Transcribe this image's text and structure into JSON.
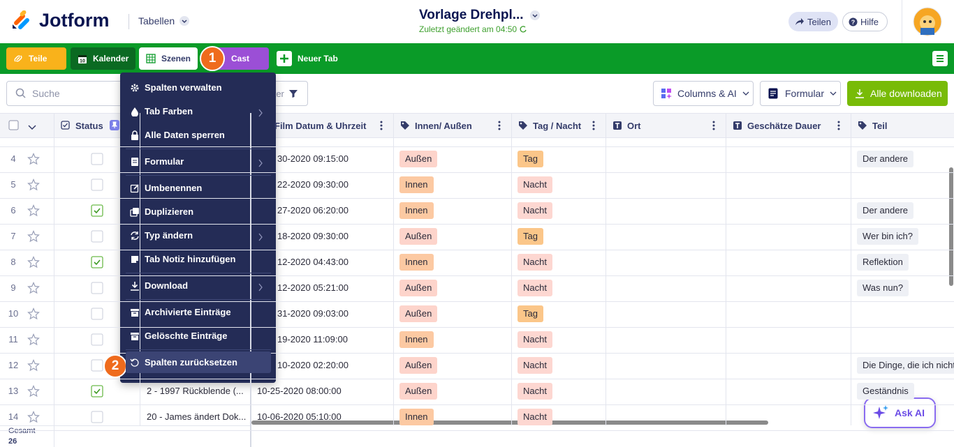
{
  "header": {
    "logo": "Jotform",
    "tables_menu": "Tabellen",
    "title": "Vorlage Drehpl...",
    "subtitle": "Zuletzt geändert am 04:50",
    "share": "Teilen",
    "help": "Hilfe"
  },
  "tabs": {
    "items": [
      "Teile",
      "Kalender",
      "Szenen",
      "Cast"
    ],
    "colors": [
      "#f9b21b",
      "#0b6a22",
      "#ffffff",
      "#9b4fd6"
    ],
    "active": 2,
    "badge": "1",
    "new_tab": "Neuer Tab"
  },
  "toolbar": {
    "search": "Suche",
    "filter": "Filter",
    "columns": "Columns & AI",
    "formular": "Formular",
    "download": "Alle downloaden"
  },
  "table": {
    "columns": [
      "Status",
      "Film Datum & Uhrzeit",
      "Innen/ Außen",
      "Tag / Nacht",
      "Ort",
      "Geschätze Dauer",
      "Teil"
    ],
    "pill_colors": {
      "Außen": "#fdd4cb",
      "Innen": "#fcc9a2",
      "Tag": "#fbc689",
      "Nacht": "#fdd7d1"
    },
    "rows": [
      {
        "num": 4,
        "status": false,
        "name": null,
        "date": "30-2020 09:15:00",
        "io": "Außen",
        "daynight": "Tag",
        "teil": "Der andere"
      },
      {
        "num": 5,
        "status": false,
        "name": null,
        "date": "22-2020 09:30:00",
        "io": "Innen",
        "daynight": "Nacht",
        "teil": null
      },
      {
        "num": 6,
        "status": true,
        "name": null,
        "date": "27-2020 06:20:00",
        "io": "Innen",
        "daynight": "Nacht",
        "teil": "Der andere"
      },
      {
        "num": 7,
        "status": false,
        "name": null,
        "date": "18-2020 09:30:00",
        "io": "Außen",
        "daynight": "Tag",
        "teil": "Wer bin ich?"
      },
      {
        "num": 8,
        "status": true,
        "name": null,
        "date": "12-2020 04:43:00",
        "io": "Innen",
        "daynight": "Nacht",
        "teil": "Reflektion"
      },
      {
        "num": 9,
        "status": false,
        "name": null,
        "date": "12-2020 05:21:00",
        "io": "Außen",
        "daynight": "Nacht",
        "teil": "Was nun?"
      },
      {
        "num": 10,
        "status": false,
        "name": null,
        "date": "31-2020 09:03:00",
        "io": "Außen",
        "daynight": "Tag",
        "teil": null
      },
      {
        "num": 11,
        "status": false,
        "name": null,
        "date": "19-2020 11:09:00",
        "io": "Innen",
        "daynight": "Nacht",
        "teil": null
      },
      {
        "num": 12,
        "status": false,
        "name": null,
        "date": "10-2020 02:20:00",
        "io": "Außen",
        "daynight": "Nacht",
        "teil": "Die Dinge, die ich nicht"
      },
      {
        "num": 13,
        "status": true,
        "name": "2 - 1997 Rückblende (...",
        "date": "10-25-2020 08:00:00",
        "io": "Außen",
        "daynight": "Nacht",
        "teil": "Geständnis"
      },
      {
        "num": 14,
        "status": false,
        "name": "20 - James ändert Dok...",
        "date": "10-06-2020 05:10:00",
        "io": "Innen",
        "daynight": "Nacht",
        "teil": null
      }
    ],
    "footer_label": "Gesamt",
    "footer_count": 26
  },
  "menu": {
    "groups": [
      [
        {
          "label": "Spalten verwalten"
        },
        {
          "label": "Tab Farben",
          "submenu": true
        },
        {
          "label": "Alle Daten sperren"
        }
      ],
      [
        {
          "label": "Formular",
          "submenu": true
        }
      ],
      [
        {
          "label": "Umbenennen"
        },
        {
          "label": "Duplizieren"
        },
        {
          "label": "Typ ändern",
          "submenu": true
        },
        {
          "label": "Tab Notiz hinzufügen"
        }
      ],
      [
        {
          "label": "Download",
          "submenu": true
        }
      ],
      [
        {
          "label": "Archivierte Einträge"
        },
        {
          "label": "Gelöschte Einträge"
        }
      ],
      [
        {
          "label": "Spalten zurücksetzen",
          "highlighted": true
        }
      ]
    ],
    "badge": "2"
  },
  "ask_ai": "Ask AI"
}
